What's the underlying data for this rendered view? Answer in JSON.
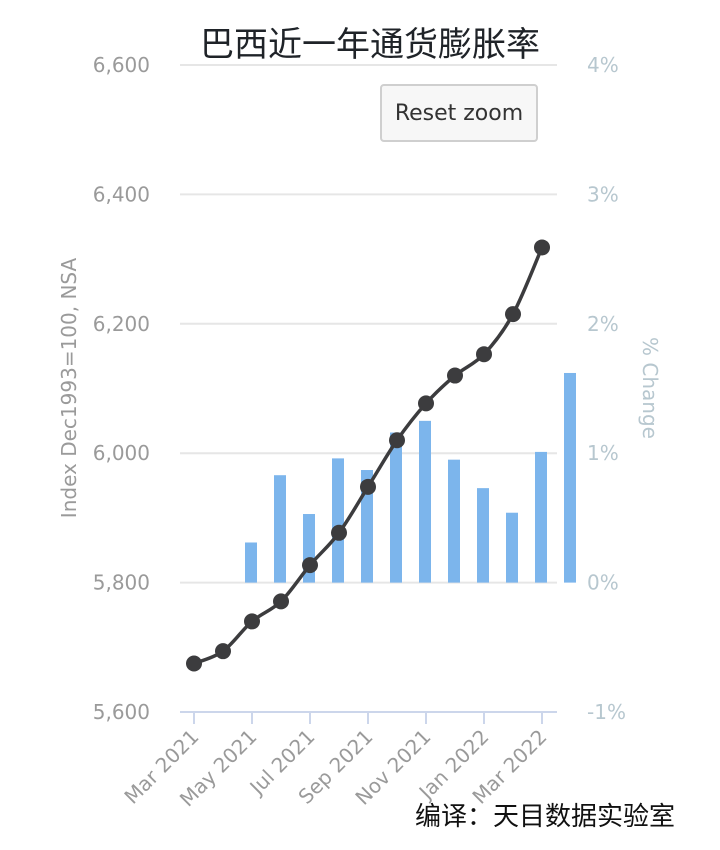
{
  "chart_data": {
    "type": "bar-line combo",
    "title": "巴西近一年通货膨胀率",
    "categories": [
      "Mar 2021",
      "Apr 2021",
      "May 2021",
      "Jun 2021",
      "Jul 2021",
      "Aug 2021",
      "Sep 2021",
      "Oct 2021",
      "Nov 2021",
      "Dec 2021",
      "Jan 2022",
      "Feb 2022",
      "Mar 2022"
    ],
    "x_tick_labels": [
      "Mar 2021",
      "May 2021",
      "Jul 2021",
      "Sep 2021",
      "Nov 2021",
      "Jan 2022",
      "Mar 2022"
    ],
    "series": [
      {
        "type": "line",
        "axis": "left",
        "values": [
          5675,
          5694,
          5740,
          5771,
          5827,
          5877,
          5948,
          6020,
          6077,
          6120,
          6153,
          6215,
          6318
        ],
        "color": "#3c3c3e"
      },
      {
        "type": "bar",
        "axis": "right",
        "values": [
          null,
          0.31,
          0.83,
          0.53,
          0.96,
          0.87,
          1.16,
          1.25,
          0.95,
          0.73,
          0.54,
          1.01,
          1.62
        ],
        "color": "#7cb5ec"
      }
    ],
    "y_left": {
      "label": "Index Dec1993=100, NSA",
      "range": [
        5600,
        6600
      ],
      "ticks": [
        "5,600",
        "5,800",
        "6,000",
        "6,200",
        "6,400",
        "6,600"
      ]
    },
    "y_right": {
      "label": "% Change",
      "range": [
        -1,
        4
      ],
      "ticks": [
        "-1%",
        "0%",
        "1%",
        "2%",
        "3%",
        "4%"
      ]
    },
    "grid": true,
    "legend": "none"
  },
  "controls": {
    "reset_zoom_label": "Reset zoom"
  },
  "credit": "编译：天目数据实验室",
  "colors": {
    "line": "#3c3c3e",
    "bar": "#7cb5ec",
    "grid": "#e6e6e6",
    "axis": "#ccd6eb"
  }
}
